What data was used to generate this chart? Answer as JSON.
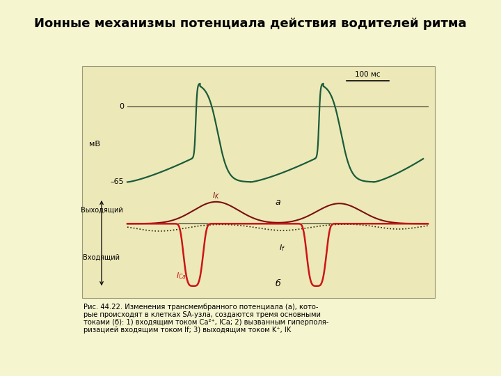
{
  "title": "Ионные механизмы потенциала действия водителей ритма",
  "title_fontsize": 13,
  "bg_color": "#f5f5d0",
  "panel_bg": "#ede8b8",
  "panel_border": "#999977",
  "ap_color": "#1a5c3a",
  "ik_color": "#7a1010",
  "ica_color": "#cc1515",
  "if_dotted_color": "#222200",
  "label_scale": "100 мс",
  "label_mV": "мВ",
  "label_0": "0",
  "label_m65": "–65",
  "label_a": "а",
  "label_b": "б",
  "label_outward": "Выходящий",
  "label_inward": "Входящий",
  "label_IK": "$I_K$",
  "label_If": "$I_f$",
  "label_ICa": "$I_{Ca}$",
  "caption_line1": "Рис. 44.22. Изменения трансмембранного потенциала (а), кото-",
  "caption_line2": "рые происходят в клетках SA-узла, создаются тремя основными",
  "caption_line3": "токами (б): 1) входящим током Ca²⁺, I",
  "caption_line3b": "Ca",
  "caption_line3c": "; 2) вызванным гиперполя-",
  "caption_line4": "ризацией входящим током I",
  "caption_line4b": "f",
  "caption_line4c": "; 3) выходящим током K⁺, I",
  "caption_line4d": "K",
  "caption_fontsize": 7.2
}
